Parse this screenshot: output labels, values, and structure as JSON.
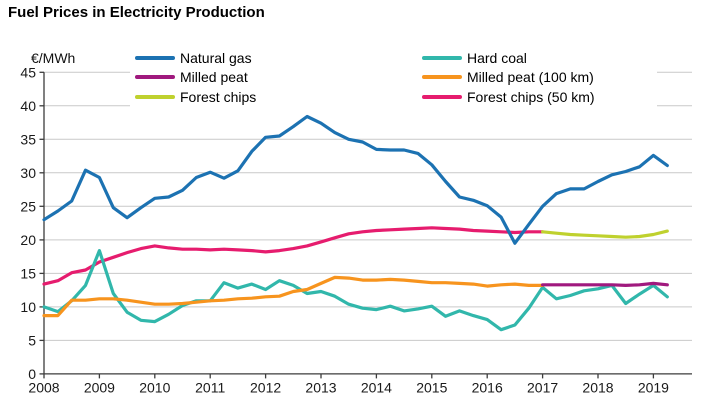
{
  "title": "Fuel Prices in Electricity Production",
  "legend": {
    "items": [
      {
        "label": "Natural gas",
        "color": "#1c72b2",
        "column": 1
      },
      {
        "label": "Milled peat",
        "color": "#a0197e",
        "column": 1
      },
      {
        "label": "Forest chips",
        "color": "#bfd12e",
        "column": 1
      },
      {
        "label": "Hard coal",
        "color": "#31b7ab",
        "column": 2
      },
      {
        "label": "Milled peat (100 km)",
        "color": "#f7941e",
        "column": 2
      },
      {
        "label": "Forest chips (50 km)",
        "color": "#e61c6e",
        "column": 2
      }
    ]
  },
  "chart_data": {
    "type": "line",
    "title": "Fuel Prices in Electricity Production",
    "ylabel": "€/MWh",
    "xlabel": "",
    "ylim": [
      0,
      45
    ],
    "y_ticks": [
      0,
      5,
      10,
      15,
      20,
      25,
      30,
      35,
      40,
      45
    ],
    "x_ticks": [
      2008,
      2009,
      2010,
      2011,
      2012,
      2013,
      2014,
      2015,
      2016,
      2017,
      2018,
      2019
    ],
    "x_range": [
      2008,
      2019.7
    ],
    "grid": "horizontal",
    "grid_color": "#c9c9c9",
    "axis_color": "#3c3c3c",
    "label_color": "#1a1a1a",
    "background": "#ffffff",
    "frequency": "quarterly",
    "series": [
      {
        "name": "Forest chips (50 km)",
        "color": "#e61c6e",
        "start": 2008,
        "step": 0.25,
        "values": [
          13.4,
          13.9,
          15.1,
          15.5,
          16.7,
          17.4,
          18.1,
          18.7,
          19.1,
          18.8,
          18.6,
          18.6,
          18.5,
          18.6,
          18.5,
          18.4,
          18.2,
          18.4,
          18.7,
          19.1,
          19.7,
          20.3,
          20.9,
          21.2,
          21.4,
          21.5,
          21.6,
          21.7,
          21.8,
          21.7,
          21.6,
          21.4,
          21.3,
          21.2,
          21.1,
          21.2,
          21.2
        ]
      },
      {
        "name": "Hard coal",
        "color": "#31b7ab",
        "start": 2008,
        "step": 0.25,
        "values": [
          10.0,
          9.3,
          10.9,
          13.2,
          18.4,
          12.0,
          9.2,
          8.0,
          7.8,
          8.9,
          10.2,
          10.9,
          10.9,
          13.6,
          12.8,
          13.4,
          12.6,
          13.9,
          13.2,
          12.0,
          12.3,
          11.6,
          10.4,
          9.8,
          9.6,
          10.1,
          9.4,
          9.7,
          10.1,
          8.6,
          9.4,
          8.7,
          8.1,
          6.6,
          7.3,
          9.8,
          12.9,
          11.2,
          11.7,
          12.4,
          12.7,
          13.2,
          10.5,
          11.9,
          13.2,
          11.5
        ]
      },
      {
        "name": "Milled peat (100 km)",
        "color": "#f7941e",
        "start": 2008,
        "step": 0.25,
        "values": [
          8.7,
          8.7,
          11.0,
          11.0,
          11.2,
          11.2,
          11.0,
          10.7,
          10.4,
          10.4,
          10.5,
          10.7,
          10.9,
          11.0,
          11.2,
          11.3,
          11.5,
          11.6,
          12.3,
          12.6,
          13.5,
          14.4,
          14.3,
          14.0,
          14.0,
          14.1,
          14.0,
          13.8,
          13.6,
          13.6,
          13.5,
          13.4,
          13.1,
          13.3,
          13.4,
          13.2,
          13.2
        ]
      },
      {
        "name": "Forest chips",
        "color": "#bfd12e",
        "start": 2017,
        "step": 0.25,
        "values": [
          21.2,
          21.0,
          20.8,
          20.7,
          20.6,
          20.5,
          20.4,
          20.5,
          20.8,
          21.3
        ]
      },
      {
        "name": "Milled peat",
        "color": "#a0197e",
        "start": 2017,
        "step": 0.25,
        "values": [
          13.3,
          13.3,
          13.3,
          13.3,
          13.3,
          13.3,
          13.2,
          13.3,
          13.5,
          13.3
        ]
      },
      {
        "name": "Natural gas",
        "color": "#1c72b2",
        "start": 2008,
        "step": 0.25,
        "values": [
          23.0,
          24.3,
          25.8,
          30.4,
          29.3,
          24.8,
          23.3,
          24.8,
          26.2,
          26.4,
          27.4,
          29.3,
          30.1,
          29.2,
          30.3,
          33.2,
          35.3,
          35.5,
          36.9,
          38.4,
          37.4,
          36.0,
          35.0,
          34.6,
          33.5,
          33.4,
          33.4,
          32.9,
          31.2,
          28.7,
          26.4,
          25.9,
          25.1,
          23.4,
          19.5,
          22.3,
          25.0,
          26.9,
          27.6,
          27.6,
          28.7,
          29.7,
          30.2,
          30.9,
          32.6,
          31.1
        ]
      }
    ]
  }
}
